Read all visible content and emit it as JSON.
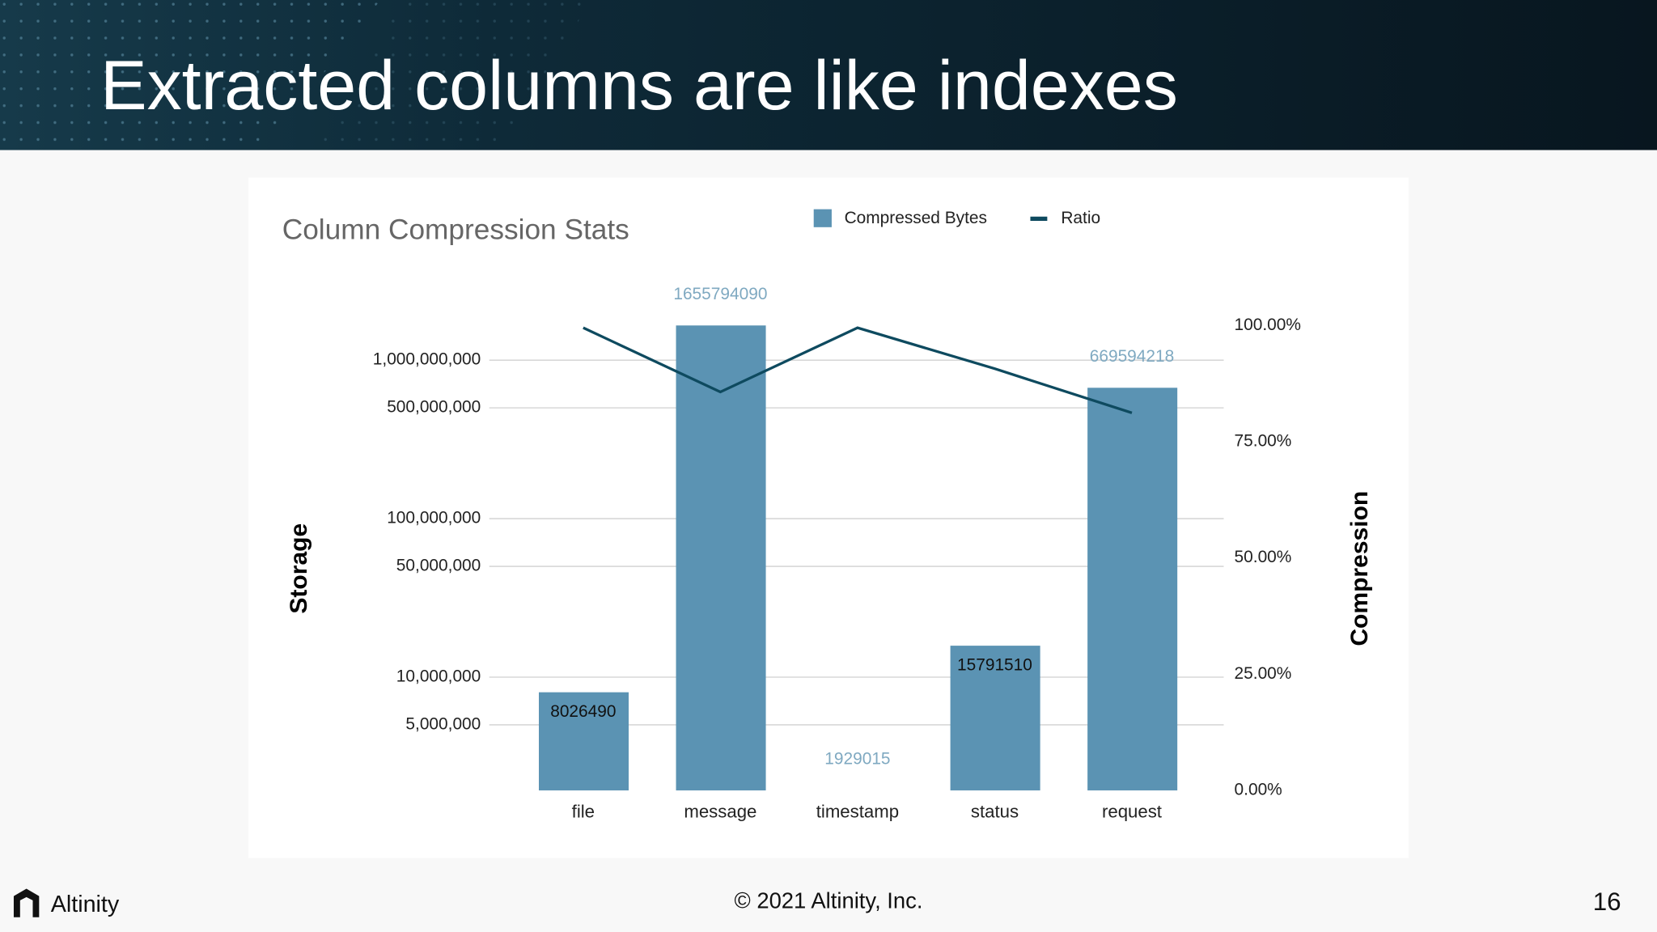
{
  "header": {
    "title": "Extracted columns are like indexes"
  },
  "footer": {
    "logo_text": "Altinity",
    "copyright": "© 2021 Altinity, Inc.",
    "page_number": "16"
  },
  "chart_data": {
    "type": "bar",
    "title": "Column Compression Stats",
    "y_label": "Storage",
    "y2_label": "Compression",
    "categories": [
      "file",
      "message",
      "timestamp",
      "status",
      "request"
    ],
    "series": [
      {
        "name": "Compressed Bytes",
        "type": "bar",
        "color": "#5b93b3",
        "values": [
          8026490,
          1655794090,
          1929015,
          15791510,
          669594218
        ]
      },
      {
        "name": "Ratio",
        "type": "line",
        "color": "#0e4a5f",
        "axis": "y2",
        "values": [
          99.5,
          85.7,
          99.5,
          90.7,
          81.2
        ]
      }
    ],
    "log_scale": true,
    "ylim": [
      1929015,
      1655794090
    ],
    "yticks": [
      {
        "value": 5000000,
        "label": "5,000,000"
      },
      {
        "value": 10000000,
        "label": "10,000,000"
      },
      {
        "value": 50000000,
        "label": "50,000,000"
      },
      {
        "value": 100000000,
        "label": "100,000,000"
      },
      {
        "value": 500000000,
        "label": "500,000,000"
      },
      {
        "value": 1000000000,
        "label": "1,000,000,000"
      }
    ],
    "y2lim": [
      0,
      100
    ],
    "y2ticks": [
      {
        "value": 0,
        "label": "0.00%"
      },
      {
        "value": 25,
        "label": "25.00%"
      },
      {
        "value": 50,
        "label": "50.00%"
      },
      {
        "value": 75,
        "label": "75.00%"
      },
      {
        "value": 100,
        "label": "100.00%"
      }
    ],
    "grid": true,
    "legend": "top"
  }
}
